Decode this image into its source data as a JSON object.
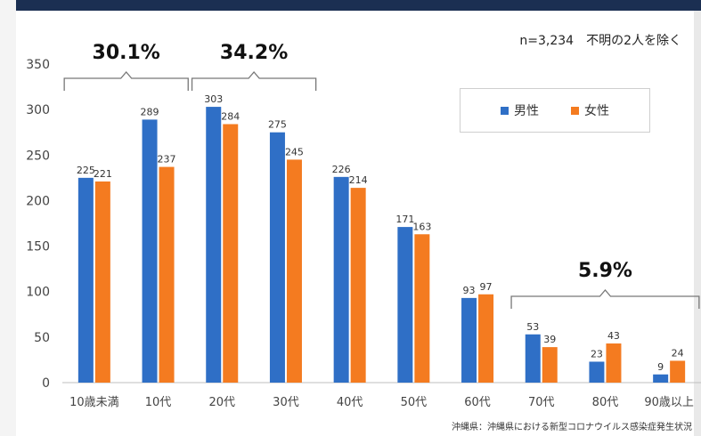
{
  "note": "n=3,234　不明の2人を除く",
  "source": "沖縄県：沖縄県における新型コロナウイルス感染症発生状況",
  "colors": {
    "male": "#2f6fc6",
    "female": "#f47b20",
    "axis": "#bfbfbf",
    "text": "#444444",
    "header": "#1b2f52"
  },
  "chart_data": {
    "type": "bar",
    "categories": [
      "10歳未満",
      "10代",
      "20代",
      "30代",
      "40代",
      "50代",
      "60代",
      "70代",
      "80代",
      "90歳以上"
    ],
    "series": [
      {
        "name": "男性",
        "values": [
          225,
          289,
          303,
          275,
          226,
          171,
          93,
          53,
          23,
          9
        ]
      },
      {
        "name": "女性",
        "values": [
          221,
          237,
          284,
          245,
          214,
          163,
          97,
          39,
          43,
          24
        ]
      }
    ],
    "ylim": [
      0,
      350
    ],
    "yticks": [
      "0",
      "50",
      "100",
      "150",
      "200",
      "250",
      "300",
      "350"
    ],
    "grid": false,
    "legend": "top-right",
    "brackets": [
      {
        "label": "30.1%",
        "from": 0,
        "to": 1
      },
      {
        "label": "34.2%",
        "from": 2,
        "to": 3
      },
      {
        "label": "5.9%",
        "from": 7,
        "to": 9
      }
    ]
  }
}
